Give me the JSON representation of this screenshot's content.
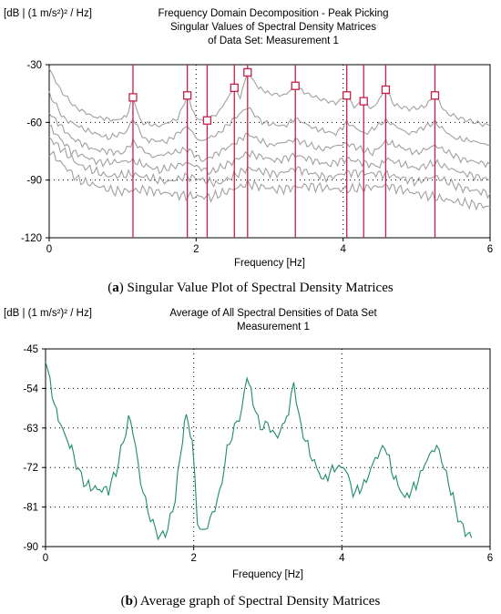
{
  "chart_data": [
    {
      "type": "line",
      "id": "a",
      "ylabel": "[dB | (1 m/s²)² / Hz]",
      "title_lines": [
        "Frequency Domain Decomposition - Peak Picking",
        "Singular Values of Spectral Density Matrices",
        "of Data Set: Measurement 1"
      ],
      "xlabel": "Frequency [Hz]",
      "xlim": [
        0,
        6
      ],
      "ylim": [
        -120,
        -30
      ],
      "x_ticks": [
        "0",
        "2",
        "4",
        "6"
      ],
      "y_ticks": [
        "-30",
        "-60",
        "-90",
        "-120"
      ],
      "grid": "dotted",
      "series_color": "#a0a0a0",
      "peak_color": "#c8204a",
      "caption_letter": "(a)",
      "caption_text": " Singular Value Plot of Spectral Density Matrices",
      "peaks": [
        {
          "x": 1.14,
          "y": -47
        },
        {
          "x": 1.88,
          "y": -46
        },
        {
          "x": 2.15,
          "y": -59
        },
        {
          "x": 2.52,
          "y": -42
        },
        {
          "x": 2.7,
          "y": -34
        },
        {
          "x": 3.35,
          "y": -41
        },
        {
          "x": 4.05,
          "y": -46
        },
        {
          "x": 4.28,
          "y": -49
        },
        {
          "x": 4.58,
          "y": -43
        },
        {
          "x": 5.25,
          "y": -46
        }
      ],
      "series": [
        {
          "values": [
            [
              0,
              -32
            ],
            [
              0.15,
              -43
            ],
            [
              0.35,
              -52
            ],
            [
              0.6,
              -57
            ],
            [
              0.9,
              -59
            ],
            [
              1.05,
              -57
            ],
            [
              1.14,
              -47
            ],
            [
              1.25,
              -60
            ],
            [
              1.5,
              -62
            ],
            [
              1.75,
              -58
            ],
            [
              1.88,
              -46
            ],
            [
              2.0,
              -58
            ],
            [
              2.15,
              -59
            ],
            [
              2.3,
              -55
            ],
            [
              2.52,
              -42
            ],
            [
              2.6,
              -47
            ],
            [
              2.7,
              -34
            ],
            [
              2.85,
              -42
            ],
            [
              3.0,
              -45
            ],
            [
              3.2,
              -46
            ],
            [
              3.35,
              -41
            ],
            [
              3.5,
              -45
            ],
            [
              3.7,
              -48
            ],
            [
              3.9,
              -50
            ],
            [
              4.05,
              -46
            ],
            [
              4.15,
              -52
            ],
            [
              4.28,
              -49
            ],
            [
              4.4,
              -53
            ],
            [
              4.58,
              -43
            ],
            [
              4.7,
              -51
            ],
            [
              4.9,
              -53
            ],
            [
              5.1,
              -52
            ],
            [
              5.25,
              -46
            ],
            [
              5.4,
              -55
            ],
            [
              5.6,
              -58
            ],
            [
              5.8,
              -60
            ],
            [
              6.0,
              -62
            ]
          ]
        },
        {
          "values": [
            [
              0,
              -45
            ],
            [
              0.2,
              -58
            ],
            [
              0.5,
              -64
            ],
            [
              0.8,
              -68
            ],
            [
              1.05,
              -65
            ],
            [
              1.14,
              -58
            ],
            [
              1.3,
              -69
            ],
            [
              1.6,
              -70
            ],
            [
              1.88,
              -62
            ],
            [
              2.05,
              -70
            ],
            [
              2.3,
              -66
            ],
            [
              2.52,
              -58
            ],
            [
              2.7,
              -52
            ],
            [
              2.9,
              -60
            ],
            [
              3.2,
              -62
            ],
            [
              3.35,
              -58
            ],
            [
              3.6,
              -63
            ],
            [
              3.9,
              -66
            ],
            [
              4.05,
              -60
            ],
            [
              4.3,
              -66
            ],
            [
              4.58,
              -59
            ],
            [
              4.9,
              -66
            ],
            [
              5.25,
              -60
            ],
            [
              5.5,
              -68
            ],
            [
              5.8,
              -70
            ],
            [
              6.0,
              -72
            ]
          ]
        },
        {
          "values": [
            [
              0,
              -55
            ],
            [
              0.3,
              -68
            ],
            [
              0.6,
              -74
            ],
            [
              1.0,
              -76
            ],
            [
              1.14,
              -70
            ],
            [
              1.4,
              -78
            ],
            [
              1.88,
              -74
            ],
            [
              2.1,
              -80
            ],
            [
              2.52,
              -71
            ],
            [
              2.7,
              -66
            ],
            [
              3.0,
              -72
            ],
            [
              3.35,
              -69
            ],
            [
              3.7,
              -74
            ],
            [
              4.05,
              -71
            ],
            [
              4.4,
              -76
            ],
            [
              4.58,
              -70
            ],
            [
              5.0,
              -76
            ],
            [
              5.25,
              -72
            ],
            [
              5.6,
              -79
            ],
            [
              6.0,
              -82
            ]
          ]
        },
        {
          "values": [
            [
              0,
              -62
            ],
            [
              0.3,
              -75
            ],
            [
              0.7,
              -81
            ],
            [
              1.14,
              -80
            ],
            [
              1.5,
              -85
            ],
            [
              1.88,
              -81
            ],
            [
              2.2,
              -86
            ],
            [
              2.52,
              -80
            ],
            [
              2.7,
              -76
            ],
            [
              3.1,
              -80
            ],
            [
              3.35,
              -77
            ],
            [
              3.8,
              -82
            ],
            [
              4.05,
              -79
            ],
            [
              4.5,
              -83
            ],
            [
              4.58,
              -79
            ],
            [
              5.0,
              -84
            ],
            [
              5.25,
              -81
            ],
            [
              5.6,
              -86
            ],
            [
              6.0,
              -90
            ]
          ]
        },
        {
          "values": [
            [
              0,
              -68
            ],
            [
              0.4,
              -82
            ],
            [
              0.8,
              -88
            ],
            [
              1.14,
              -87
            ],
            [
              1.6,
              -91
            ],
            [
              1.88,
              -88
            ],
            [
              2.3,
              -92
            ],
            [
              2.7,
              -84
            ],
            [
              3.1,
              -87
            ],
            [
              3.35,
              -84
            ],
            [
              3.8,
              -89
            ],
            [
              4.05,
              -86
            ],
            [
              4.6,
              -87
            ],
            [
              5.0,
              -91
            ],
            [
              5.25,
              -88
            ],
            [
              5.6,
              -94
            ],
            [
              6.0,
              -97
            ]
          ]
        },
        {
          "values": [
            [
              0,
              -75
            ],
            [
              0.4,
              -90
            ],
            [
              0.9,
              -96
            ],
            [
              1.3,
              -95
            ],
            [
              1.8,
              -98
            ],
            [
              2.2,
              -99
            ],
            [
              2.7,
              -92
            ],
            [
              3.1,
              -95
            ],
            [
              3.5,
              -93
            ],
            [
              4.0,
              -95
            ],
            [
              4.6,
              -93
            ],
            [
              5.0,
              -97
            ],
            [
              5.5,
              -101
            ],
            [
              6.0,
              -104
            ]
          ]
        }
      ]
    },
    {
      "type": "line",
      "id": "b",
      "ylabel": "[dB | (1 m/s²)² / Hz]",
      "title_lines": [
        "Average of All Spectral Densities of Data Set",
        "Measurement 1"
      ],
      "xlabel": "Frequency [Hz]",
      "xlim": [
        0,
        6
      ],
      "ylim": [
        -90,
        -45
      ],
      "x_ticks": [
        "0",
        "2",
        "4",
        "6"
      ],
      "y_ticks": [
        "-45",
        "-54",
        "-63",
        "-72",
        "-81",
        "-90"
      ],
      "grid": "dotted",
      "series_color": "#1e8c6e",
      "caption_letter": "(b)",
      "caption_text": " Average graph of Spectral Density Matrices",
      "series": [
        {
          "values": [
            [
              0,
              -48
            ],
            [
              0.06,
              -52
            ],
            [
              0.12,
              -58
            ],
            [
              0.2,
              -62
            ],
            [
              0.3,
              -66
            ],
            [
              0.38,
              -69
            ],
            [
              0.45,
              -73
            ],
            [
              0.55,
              -76
            ],
            [
              0.7,
              -77
            ],
            [
              0.85,
              -77
            ],
            [
              0.95,
              -73
            ],
            [
              1.05,
              -66
            ],
            [
              1.12,
              -61
            ],
            [
              1.18,
              -63
            ],
            [
              1.25,
              -72
            ],
            [
              1.35,
              -80
            ],
            [
              1.45,
              -85
            ],
            [
              1.55,
              -88
            ],
            [
              1.65,
              -86
            ],
            [
              1.75,
              -79
            ],
            [
              1.85,
              -65
            ],
            [
              1.9,
              -60
            ],
            [
              1.98,
              -66
            ],
            [
              2.05,
              -84
            ],
            [
              2.12,
              -87
            ],
            [
              2.22,
              -84
            ],
            [
              2.35,
              -78
            ],
            [
              2.45,
              -68
            ],
            [
              2.55,
              -63
            ],
            [
              2.65,
              -59
            ],
            [
              2.72,
              -51
            ],
            [
              2.8,
              -57
            ],
            [
              2.9,
              -63
            ],
            [
              3.0,
              -62
            ],
            [
              3.1,
              -65
            ],
            [
              3.2,
              -63
            ],
            [
              3.28,
              -59
            ],
            [
              3.35,
              -53
            ],
            [
              3.45,
              -63
            ],
            [
              3.6,
              -70
            ],
            [
              3.75,
              -75
            ],
            [
              3.9,
              -72
            ],
            [
              4.05,
              -72
            ],
            [
              4.15,
              -78
            ],
            [
              4.3,
              -76
            ],
            [
              4.45,
              -70
            ],
            [
              4.58,
              -67
            ],
            [
              4.7,
              -74
            ],
            [
              4.85,
              -79
            ],
            [
              5.0,
              -76
            ],
            [
              5.15,
              -70
            ],
            [
              5.28,
              -67
            ],
            [
              5.38,
              -72
            ],
            [
              5.5,
              -79
            ],
            [
              5.6,
              -85
            ],
            [
              5.7,
              -87
            ],
            [
              5.75,
              -88
            ]
          ]
        }
      ]
    }
  ]
}
